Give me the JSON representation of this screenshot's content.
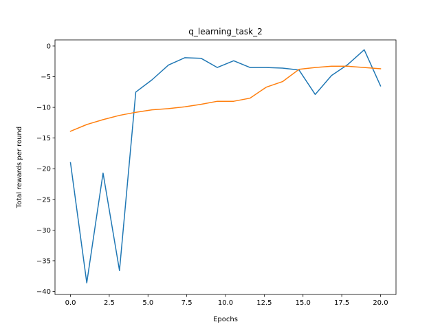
{
  "chart_data": {
    "type": "line",
    "title": "q_learning_task_2",
    "xlabel": "Epochs",
    "ylabel": "Total rewards per round",
    "xlim": [
      -1.0,
      21.0
    ],
    "ylim": [
      -40.5,
      1.0
    ],
    "xticks": [
      0.0,
      2.5,
      5.0,
      7.5,
      10.0,
      12.5,
      15.0,
      17.5,
      20.0
    ],
    "xtick_labels": [
      "0.0",
      "2.5",
      "5.0",
      "7.5",
      "10.0",
      "12.5",
      "15.0",
      "17.5",
      "20.0"
    ],
    "yticks": [
      0,
      -5,
      -10,
      -15,
      -20,
      -25,
      -30,
      -35,
      -40
    ],
    "ytick_labels": [
      "0",
      "−5",
      "−10",
      "−15",
      "−20",
      "−25",
      "−30",
      "−35",
      "−40"
    ],
    "grid": false,
    "legend": false,
    "series": [
      {
        "color": "#1f77b4",
        "x": [
          0.0,
          1.05,
          2.1,
          3.16,
          4.21,
          5.26,
          6.32,
          7.37,
          8.42,
          9.47,
          10.53,
          11.58,
          12.63,
          13.68,
          14.74,
          15.79,
          16.84,
          17.89,
          18.95,
          20.0
        ],
        "values": [
          -19.0,
          -38.6,
          -20.7,
          -36.6,
          -7.5,
          -5.5,
          -3.1,
          -1.9,
          -2.0,
          -3.5,
          -2.4,
          -3.5,
          -3.5,
          -3.6,
          -3.9,
          -7.9,
          -4.8,
          -3.0,
          -0.6,
          -6.5
        ]
      },
      {
        "color": "#ff7f0e",
        "x": [
          0.0,
          1.05,
          2.1,
          3.16,
          4.21,
          5.26,
          6.32,
          7.37,
          8.42,
          9.47,
          10.53,
          11.58,
          12.63,
          13.68,
          14.74,
          15.79,
          16.84,
          17.89,
          18.95,
          20.0
        ],
        "values": [
          -13.9,
          -12.8,
          -12.0,
          -11.3,
          -10.8,
          -10.4,
          -10.2,
          -9.9,
          -9.5,
          -9.0,
          -9.0,
          -8.5,
          -6.7,
          -5.8,
          -3.8,
          -3.5,
          -3.3,
          -3.3,
          -3.5,
          -3.7
        ]
      }
    ]
  }
}
